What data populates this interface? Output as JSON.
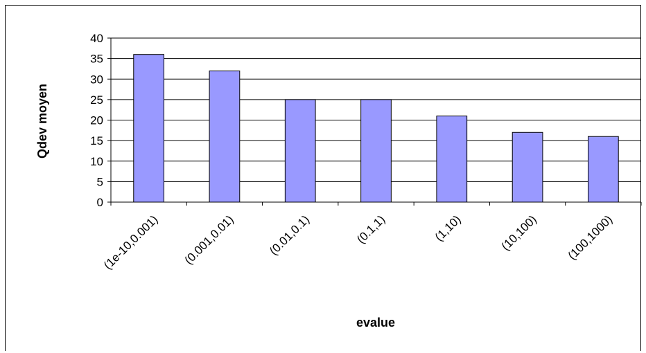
{
  "chart_data": {
    "type": "bar",
    "categories": [
      "(1e-10,0.001)",
      "(0.001,0.01)",
      "(0.01,0.1)",
      "(0.1,1)",
      "(1,10)",
      "(10,100)",
      "(100,1000)"
    ],
    "values": [
      36,
      32,
      25,
      25,
      21,
      17,
      16
    ],
    "title": "",
    "xlabel": "evalue",
    "ylabel": "Qdev moyen",
    "ylim": [
      0,
      40
    ],
    "yticks": [
      0,
      5,
      10,
      15,
      20,
      25,
      30,
      35,
      40
    ],
    "grid": true,
    "legend": "none",
    "colors": {
      "bar_fill": "#9999ff",
      "bar_stroke": "#000000",
      "grid": "#000000"
    }
  }
}
